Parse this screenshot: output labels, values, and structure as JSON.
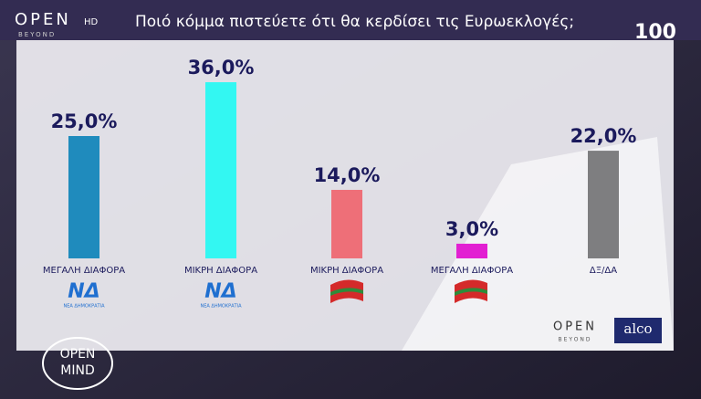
{
  "chart_data": {
    "type": "bar",
    "title": "Ποιό κόμμα πιστεύετε ότι θα κερδίσει τις Ευρωεκλογές;",
    "categories": [
      "ΜΕΓΑΛΗ ΔΙΑΦΟΡΑ",
      "ΜΙΚΡΗ ΔΙΑΦΟΡΑ",
      "ΜΙΚΡΗ ΔΙΑΦΟΡΑ",
      "ΜΕΓΑΛΗ ΔΙΑΦΟΡΑ",
      "ΔΞ/ΔΑ"
    ],
    "values": [
      25,
      36,
      14,
      3,
      22
    ],
    "value_labels": [
      "25,0%",
      "36,0%",
      "14,0%",
      "3,0%",
      "22,0%"
    ],
    "colors": [
      "#1f8bbd",
      "#33f7f2",
      "#ee6f78",
      "#e21fd2",
      "#7e7e80"
    ]
  },
  "party_logos": [
    {
      "mark": "ΝΔ",
      "caption": "ΝΕΑ ΔΗΜΟΚΡΑΤΙΑ"
    },
    {
      "mark": "ΝΔ",
      "caption": "ΝΕΑ ΔΗΜΟΚΡΑΤΙΑ"
    }
  ],
  "channel": {
    "name": "OPEN",
    "hd": "HD",
    "sub": "BEYOND",
    "badge": "100"
  },
  "show": [
    "OPEN",
    "MIND"
  ],
  "footer": {
    "channel": "OPEN",
    "channel_sub": "BEYOND",
    "pollster": "alco"
  }
}
